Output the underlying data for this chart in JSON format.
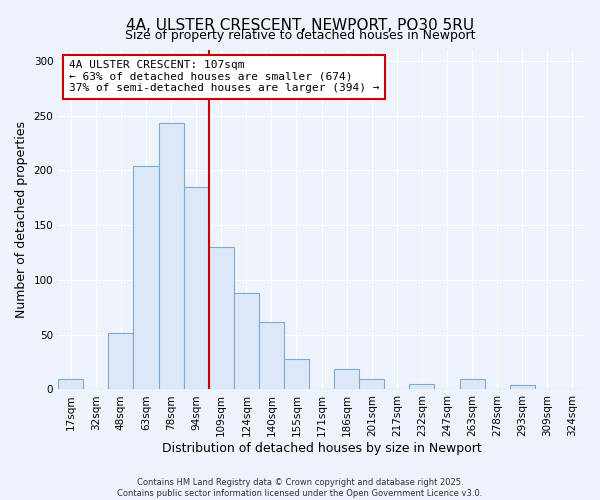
{
  "title": "4A, ULSTER CRESCENT, NEWPORT, PO30 5RU",
  "subtitle": "Size of property relative to detached houses in Newport",
  "xlabel": "Distribution of detached houses by size in Newport",
  "ylabel": "Number of detached properties",
  "bar_labels": [
    "17sqm",
    "32sqm",
    "48sqm",
    "63sqm",
    "78sqm",
    "94sqm",
    "109sqm",
    "124sqm",
    "140sqm",
    "155sqm",
    "171sqm",
    "186sqm",
    "201sqm",
    "217sqm",
    "232sqm",
    "247sqm",
    "263sqm",
    "278sqm",
    "293sqm",
    "309sqm",
    "324sqm"
  ],
  "bar_values": [
    10,
    0,
    52,
    204,
    243,
    185,
    130,
    88,
    62,
    28,
    0,
    19,
    10,
    0,
    5,
    0,
    10,
    0,
    4,
    0,
    0
  ],
  "bar_color": "#dce8f8",
  "bar_edge_color": "#7baad4",
  "vline_index": 6,
  "vline_color": "#cc0000",
  "annotation_title": "4A ULSTER CRESCENT: 107sqm",
  "annotation_line1": "← 63% of detached houses are smaller (674)",
  "annotation_line2": "37% of semi-detached houses are larger (394) →",
  "annotation_box_edge": "#cc0000",
  "ylim": [
    0,
    310
  ],
  "yticks": [
    0,
    50,
    100,
    150,
    200,
    250,
    300
  ],
  "footer1": "Contains HM Land Registry data © Crown copyright and database right 2025.",
  "footer2": "Contains public sector information licensed under the Open Government Licence v3.0.",
  "bg_color": "#eef2fb",
  "plot_bg_color": "#eef2fb",
  "grid_color": "#ffffff",
  "title_fontsize": 11,
  "subtitle_fontsize": 9,
  "xlabel_fontsize": 9,
  "ylabel_fontsize": 9,
  "tick_fontsize": 7.5,
  "annotation_fontsize": 8,
  "footer_fontsize": 6
}
